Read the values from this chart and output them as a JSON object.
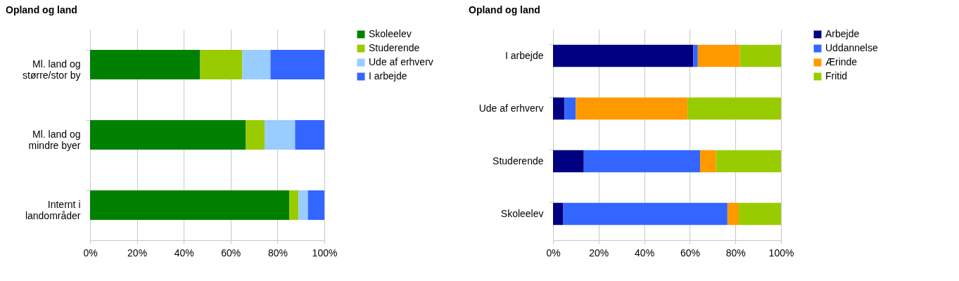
{
  "chart_data": [
    {
      "type": "bar",
      "title": "Opland og land",
      "orientation": "horizontal",
      "stacked": true,
      "categories": [
        "Ml. land og\nstørre/stor by",
        "Ml. land og\nmindre byer",
        "Internt i\nlandområder"
      ],
      "series": [
        {
          "name": "Skoleelev",
          "color": "#008000",
          "values": [
            47,
            66.5,
            85
          ]
        },
        {
          "name": "Studerende",
          "color": "#99cc00",
          "values": [
            18,
            8,
            4
          ]
        },
        {
          "name": "Ude af erhverv",
          "color": "#99ccff",
          "values": [
            12,
            13,
            4
          ]
        },
        {
          "name": "I arbejde",
          "color": "#3366ff",
          "values": [
            23,
            12.5,
            7
          ]
        }
      ],
      "xlim": [
        0,
        100
      ],
      "xticks": [
        {
          "value": 0,
          "label": "0%"
        },
        {
          "value": 20,
          "label": "20%"
        },
        {
          "value": 40,
          "label": "40%"
        },
        {
          "value": 60,
          "label": "60%"
        },
        {
          "value": 80,
          "label": "80%"
        },
        {
          "value": 100,
          "label": "100%"
        }
      ],
      "grid": "x",
      "legend": "right"
    },
    {
      "type": "bar",
      "title": "Opland og land",
      "orientation": "horizontal",
      "stacked": true,
      "categories": [
        "I arbejde",
        "Ude af erhverv",
        "Studerende",
        "Skoleelev"
      ],
      "series": [
        {
          "name": "Arbejde",
          "color": "#000080",
          "values": [
            61.5,
            5,
            13.5,
            4.5
          ]
        },
        {
          "name": "Uddannelse",
          "color": "#3366ff",
          "values": [
            2,
            5,
            51,
            72
          ]
        },
        {
          "name": "Ærinde",
          "color": "#ff9900",
          "values": [
            18.5,
            49,
            7,
            5
          ]
        },
        {
          "name": "Fritid",
          "color": "#99cc00",
          "values": [
            18,
            41,
            28.5,
            18.5
          ]
        }
      ],
      "xlim": [
        0,
        100
      ],
      "xticks": [
        {
          "value": 0,
          "label": "0%"
        },
        {
          "value": 20,
          "label": "20%"
        },
        {
          "value": 40,
          "label": "40%"
        },
        {
          "value": 60,
          "label": "60%"
        },
        {
          "value": 80,
          "label": "80%"
        },
        {
          "value": 100,
          "label": "100%"
        }
      ],
      "grid": "x",
      "legend": "right"
    }
  ]
}
